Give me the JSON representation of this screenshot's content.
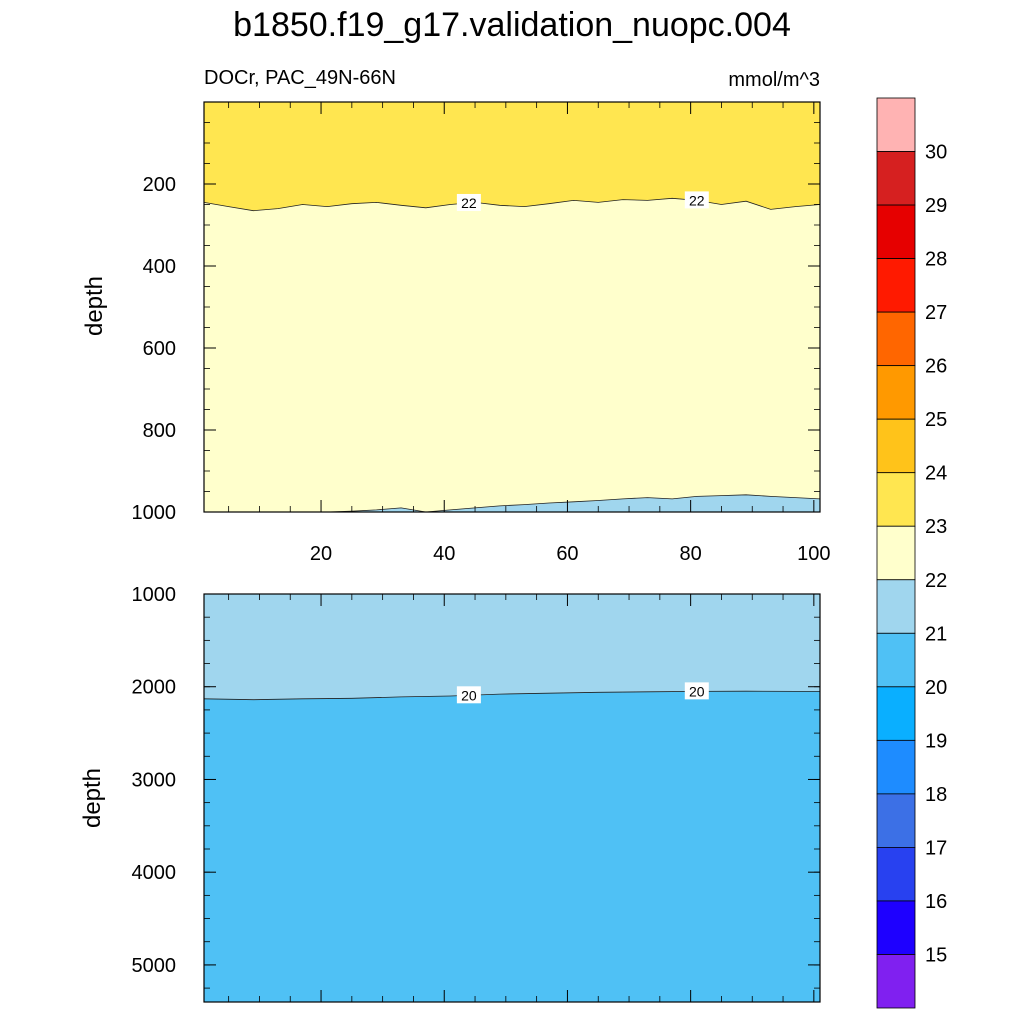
{
  "title": "b1850.f19_g17.validation_nuopc.004",
  "chart_data": [
    {
      "type": "contour",
      "panel": "upper",
      "left_label": "DOCr, PAC_49N-66N",
      "right_label": "mmol/m^3",
      "ylabel": "depth",
      "xlim": [
        1,
        101
      ],
      "ylim": [
        1000,
        0
      ],
      "x_ticks": [
        20,
        40,
        60,
        80,
        100
      ],
      "x_tick_labels": [
        "20",
        "40",
        "60",
        "80",
        "100"
      ],
      "y_ticks": [
        200,
        400,
        600,
        800,
        1000
      ],
      "y_tick_labels": [
        "200",
        "400",
        "600",
        "800",
        "1000"
      ],
      "contour_labels": [
        "22",
        "22"
      ],
      "contours": [
        {
          "level": 22,
          "x": [
            1,
            5,
            9,
            13,
            17,
            21,
            25,
            29,
            33,
            37,
            41,
            45,
            49,
            53,
            57,
            61,
            65,
            69,
            73,
            77,
            81,
            85,
            89,
            93,
            97,
            101
          ],
          "y": [
            245,
            255,
            265,
            260,
            250,
            255,
            248,
            245,
            252,
            258,
            250,
            245,
            252,
            255,
            248,
            240,
            245,
            238,
            240,
            235,
            240,
            250,
            242,
            262,
            255,
            250
          ]
        },
        {
          "level": 21,
          "x": [
            1,
            5,
            9,
            13,
            17,
            21,
            25,
            29,
            33,
            37,
            41,
            45,
            49,
            53,
            57,
            61,
            65,
            69,
            73,
            77,
            81,
            85,
            89,
            93,
            97,
            101
          ],
          "y": [
            1000,
            1000,
            1000,
            1000,
            1000,
            1000,
            998,
            995,
            990,
            1000,
            995,
            990,
            985,
            982,
            978,
            975,
            972,
            968,
            965,
            968,
            962,
            960,
            958,
            962,
            965,
            968
          ]
        }
      ]
    },
    {
      "type": "contour",
      "panel": "lower",
      "ylabel": "depth",
      "xlim": [
        1,
        101
      ],
      "ylim": [
        5400,
        1000
      ],
      "y_ticks": [
        1000,
        2000,
        3000,
        4000,
        5000
      ],
      "y_tick_labels": [
        "1000",
        "2000",
        "3000",
        "4000",
        "5000"
      ],
      "contour_labels": [
        "20",
        "20"
      ],
      "contours": [
        {
          "level": 20,
          "x": [
            1,
            9,
            17,
            25,
            33,
            41,
            49,
            57,
            65,
            73,
            81,
            89,
            97,
            101
          ],
          "y": [
            2130,
            2140,
            2130,
            2125,
            2110,
            2100,
            2080,
            2070,
            2060,
            2055,
            2050,
            2048,
            2050,
            2050
          ]
        }
      ]
    }
  ],
  "colorbar": {
    "levels": [
      "30",
      "29",
      "28",
      "27",
      "26",
      "25",
      "24",
      "23",
      "22",
      "21",
      "20",
      "19",
      "18",
      "17",
      "16",
      "15"
    ],
    "colors": [
      "#ffb3b3",
      "#d62020",
      "#e60000",
      "#ff1a00",
      "#ff6600",
      "#ff9900",
      "#ffc31a",
      "#ffe650",
      "#ffffcc",
      "#a0d6ee",
      "#4fc1f5",
      "#0aafff",
      "#1e8cff",
      "#3c70e6",
      "#2841f0",
      "#1e00ff",
      "#8020f0"
    ]
  }
}
